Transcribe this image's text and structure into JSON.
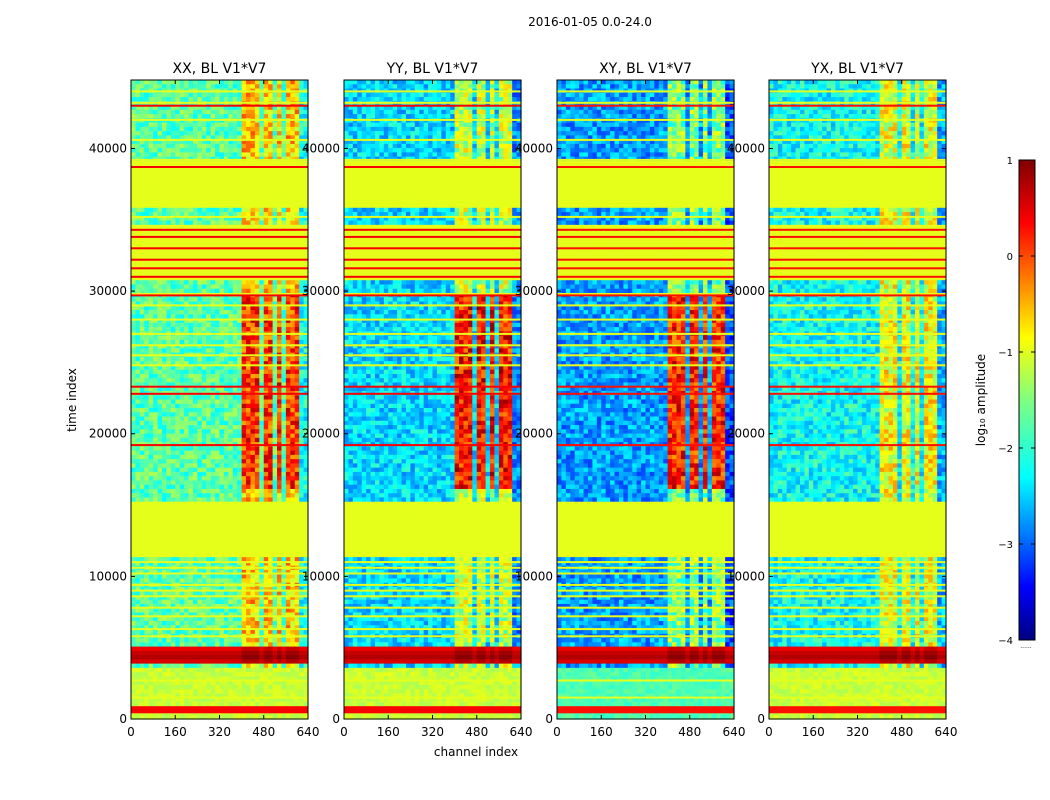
{
  "figure": {
    "suptitle": "2016-01-05 0.0-24.0",
    "xlabel": "channel index",
    "ylabel": "time index"
  },
  "colormap": {
    "name": "jet",
    "stops": [
      "#00007f",
      "#0000ff",
      "#007fff",
      "#00ffff",
      "#7fff7f",
      "#ffff00",
      "#ff7f00",
      "#ff0000",
      "#7f0000"
    ]
  },
  "chart_data": [
    {
      "type": "heatmap",
      "title": "XX, BL V1*V7",
      "xlabel": "channel index",
      "ylabel": "time index",
      "xlim": [
        0,
        640
      ],
      "ylim": [
        0,
        44800
      ],
      "xticks": [
        "0",
        "160",
        "320",
        "480",
        "640"
      ],
      "yticks": [
        "0",
        "10000",
        "20000",
        "30000",
        "40000"
      ],
      "xtick_values": [
        0,
        160,
        320,
        480,
        640
      ],
      "ytick_values": [
        0,
        10000,
        20000,
        30000,
        40000
      ],
      "base_level": -1.7,
      "strong_band_level": 0.1,
      "band_level": 0.4
    },
    {
      "type": "heatmap",
      "title": "YY, BL V1*V7",
      "xlabel": "channel index",
      "ylabel": "time index",
      "xlim": [
        0,
        640
      ],
      "ylim": [
        0,
        44800
      ],
      "xticks": [
        "0",
        "160",
        "320",
        "480",
        "640"
      ],
      "yticks": [
        "0",
        "10000",
        "20000",
        "30000",
        "40000"
      ],
      "xtick_values": [
        0,
        160,
        320,
        480,
        640
      ],
      "ytick_values": [
        0,
        10000,
        20000,
        30000,
        40000
      ],
      "base_level": -2.3,
      "strong_band_level": 0.3,
      "band_level": 0.4
    },
    {
      "type": "heatmap",
      "title": "XY, BL V1*V7",
      "xlabel": "channel index",
      "ylabel": "time index",
      "xlim": [
        0,
        640
      ],
      "ylim": [
        0,
        44800
      ],
      "xticks": [
        "0",
        "160",
        "320",
        "480",
        "640"
      ],
      "yticks": [
        "0",
        "10000",
        "20000",
        "30000",
        "40000"
      ],
      "xtick_values": [
        0,
        160,
        320,
        480,
        640
      ],
      "ytick_values": [
        0,
        10000,
        20000,
        30000,
        40000
      ],
      "base_level": -2.6,
      "strong_band_level": 0.2,
      "band_level": 0.3
    },
    {
      "type": "heatmap",
      "title": "YX, BL V1*V7",
      "xlabel": "channel index",
      "ylabel": "time index",
      "xlim": [
        0,
        640
      ],
      "ylim": [
        0,
        44800
      ],
      "xticks": [
        "0",
        "160",
        "320",
        "480",
        "640"
      ],
      "yticks": [
        "0",
        "10000",
        "20000",
        "30000",
        "40000"
      ],
      "xtick_values": [
        0,
        160,
        320,
        480,
        640
      ],
      "ytick_values": [
        0,
        10000,
        20000,
        30000,
        40000
      ],
      "base_level": -2.1,
      "strong_band_level": -0.9,
      "band_level": 0.3
    }
  ],
  "shared_features": {
    "flagged_blocks_time": [
      [
        11300,
        15200
      ],
      [
        30800,
        34600
      ],
      [
        35800,
        39000
      ]
    ],
    "flag_value": -1.0,
    "rfi_channel_bands": [
      [
        395,
        440
      ],
      [
        445,
        470
      ],
      [
        480,
        510
      ],
      [
        525,
        545
      ],
      [
        555,
        590
      ],
      [
        590,
        610
      ]
    ],
    "bright_event_time": [
      3800,
      5000
    ],
    "bright_event_peak": 1.0,
    "low_time_band": [
      0,
      3500
    ],
    "low_time_band_value": -1.0,
    "bottom_edge_line_time": [
      400,
      900
    ],
    "horizontal_flag_times": [
      500,
      1500,
      2700,
      5800,
      6300,
      7200,
      7800,
      8600,
      9000,
      9400,
      10200,
      10600,
      11000,
      24800,
      25500,
      26200,
      27000,
      28000,
      29000,
      29800,
      35200,
      36200,
      39200,
      40600,
      42000,
      43200,
      44000
    ],
    "bright_line_times": [
      22800,
      23300,
      19200,
      29700,
      31000,
      31600,
      32200,
      33000,
      33800,
      34300,
      38700,
      43000
    ]
  },
  "colorbar": {
    "label": "log₁₀ amplitude",
    "min": -4,
    "max": 1,
    "ticks": [
      "1",
      "0",
      "−1",
      "−2",
      "−3",
      "−4"
    ],
    "tick_values": [
      1,
      0,
      -1,
      -2,
      -3,
      -4
    ],
    "footer": "......"
  }
}
